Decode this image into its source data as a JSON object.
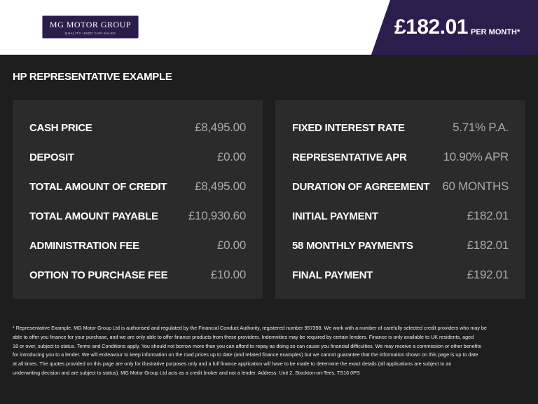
{
  "header": {
    "logo_title": "MG MOTOR GROUP",
    "logo_subtitle": "QUALITY USED CAR SALES",
    "price": "£182.01",
    "per_month": "PER MONTH*"
  },
  "section_title": "HP REPRESENTATIVE EXAMPLE",
  "left_table": {
    "rows": [
      [
        "CASH PRICE",
        "£8,495.00"
      ],
      [
        "DEPOSIT",
        "£0.00"
      ],
      [
        "TOTAL AMOUNT OF CREDIT",
        "£8,495.00"
      ],
      [
        "TOTAL AMOUNT PAYABLE",
        "£10,930.60"
      ],
      [
        "ADMINISTRATION FEE",
        "£0.00"
      ],
      [
        "OPTION TO PURCHASE FEE",
        "£10.00"
      ]
    ]
  },
  "right_table": {
    "rows": [
      [
        "FIXED INTEREST RATE",
        "5.71% P.A."
      ],
      [
        "REPRESENTATIVE APR",
        "10.90% APR"
      ],
      [
        "DURATION OF AGREEMENT",
        "60 MONTHS"
      ],
      [
        "INITIAL PAYMENT",
        "£182.01"
      ],
      [
        "58 MONTHLY PAYMENTS",
        "£182.01"
      ],
      [
        "FINAL PAYMENT",
        "£192.01"
      ]
    ]
  },
  "footnote": {
    "lines": [
      "* Representative Example. MG Motor Group Ltd is authorised and regulated by the Financial Conduct Authority, registered number 957398. We work with a number of carefully selected credit providers who may be",
      "able to offer you finance for your purchase, and we are only able to offer finance products from these providers. Indemnities may be required by certain lenders. Finance is only available to UK residents, aged",
      "18 or over, subject to status. Terms and Conditions apply. You should not borrow more than you can afford to repay as doing so can cause you financial difficulties. We may receive a commission or other benefits",
      "for introducing you to a lender. We will endeavour to keep information on the road prices up to date (and related finance examples) but we cannot guarantee that the information shown on this page is up to date",
      "at all times. The quotes provided on this page are only for illustrative purposes only and a full finance application will have to be made to determine the exact details (all applications are subject to an",
      "underwriting decision and are subject to status). MG Motor Group Ltd acts as a credit broker and not a lender. Address: Unit 2, Stockton-on-Tees, TS16 0PS"
    ]
  }
}
